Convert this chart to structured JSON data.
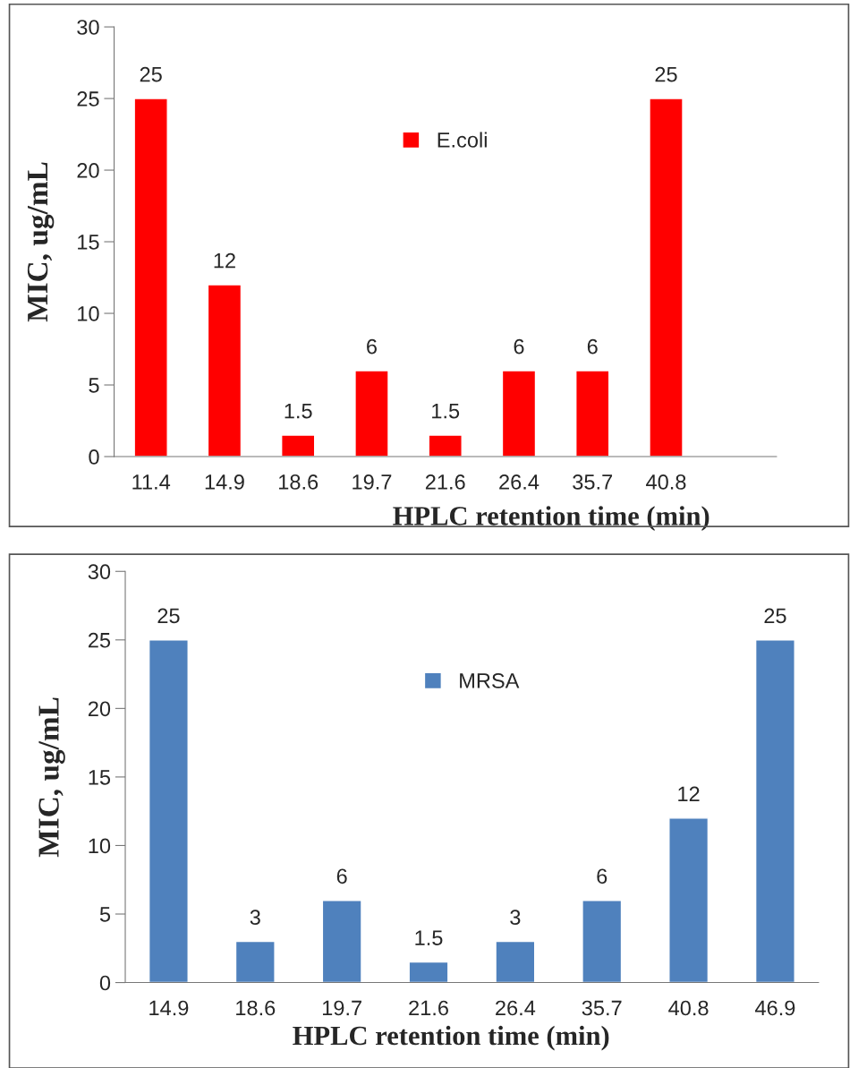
{
  "chart_data": [
    {
      "type": "bar",
      "categories": [
        "11.4",
        "14.9",
        "18.6",
        "19.7",
        "21.6",
        "26.4",
        "35.7",
        "40.8",
        null
      ],
      "series": [
        {
          "name": "E.coli",
          "color": "#ff0000",
          "values": [
            25,
            12,
            1.5,
            6,
            1.5,
            6,
            6,
            25,
            null
          ]
        }
      ],
      "ylim": [
        0,
        30
      ],
      "yticks": [
        0,
        5,
        10,
        15,
        20,
        25,
        30
      ],
      "xlabel": "HPLC retention time (min)",
      "ylabel": "MIC, ug/mL",
      "data_labels": true,
      "legend": "top",
      "grid": false
    },
    {
      "type": "bar",
      "categories": [
        "14.9",
        "18.6",
        "19.7",
        "21.6",
        "26.4",
        "35.7",
        "40.8",
        "46.9"
      ],
      "series": [
        {
          "name": "MRSA",
          "color": "#4f81bd",
          "values": [
            25,
            3,
            6,
            1.5,
            3,
            6,
            12,
            25
          ]
        }
      ],
      "ylim": [
        0,
        30
      ],
      "yticks": [
        0,
        5,
        10,
        15,
        20,
        25,
        30
      ],
      "xlabel": "HPLC retention time (min)",
      "ylabel": "MIC, ug/mL",
      "data_labels": true,
      "legend": "top",
      "grid": false
    }
  ]
}
